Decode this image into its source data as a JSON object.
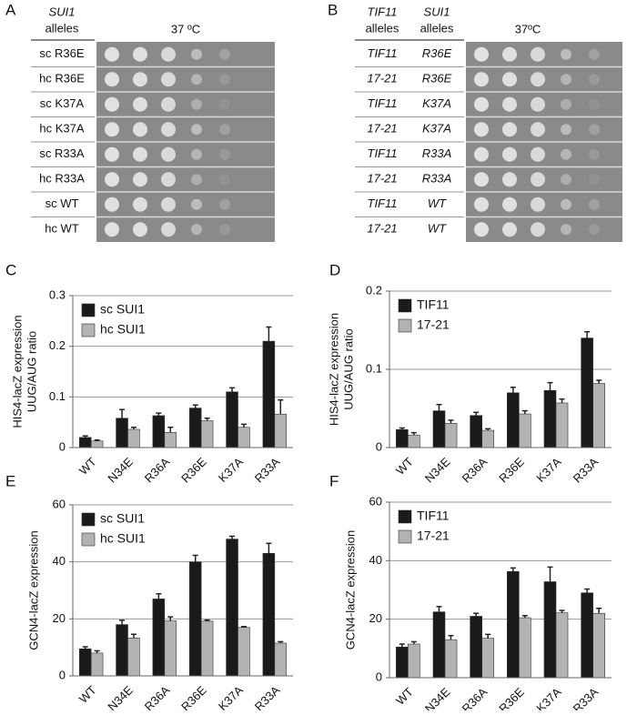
{
  "panel_a": {
    "label": "A",
    "header": [
      "SUI1",
      "alleles"
    ],
    "temperature": "37 ºC",
    "rows": [
      "sc R36E",
      "hc R36E",
      "sc K37A",
      "hc K37A",
      "sc R33A",
      "hc R33A",
      "sc WT",
      "hc WT"
    ]
  },
  "panel_b": {
    "label": "B",
    "header_1": [
      "TIF11",
      "alleles"
    ],
    "header_2": [
      "SUI1",
      "alleles"
    ],
    "temperature": "37ºC",
    "rows": [
      [
        "TIF11",
        "R36E"
      ],
      [
        "17-21",
        "R36E"
      ],
      [
        "TIF11",
        "K37A"
      ],
      [
        "17-21",
        "K37A"
      ],
      [
        "TIF11",
        "R33A"
      ],
      [
        "17-21",
        "R33A"
      ],
      [
        "TIF11",
        "WT"
      ],
      [
        "17-21",
        "WT"
      ]
    ]
  },
  "chart_data": [
    {
      "type": "bar",
      "panel": "C",
      "ylabel": [
        "HIS4-lacZ expression",
        "UUG/AUG ratio"
      ],
      "categories": [
        "WT",
        "N34E",
        "R36A",
        "R36E",
        "K37A",
        "R33A"
      ],
      "series": [
        {
          "name": "sc SUI1",
          "color": "#1a1a1a",
          "values": [
            0.02,
            0.058,
            0.063,
            0.078,
            0.11,
            0.21
          ],
          "errors": [
            0.003,
            0.017,
            0.005,
            0.006,
            0.008,
            0.028
          ]
        },
        {
          "name": "hc SUI1",
          "color": "#b3b3b3",
          "values": [
            0.013,
            0.036,
            0.03,
            0.053,
            0.04,
            0.066
          ],
          "errors": [
            0.002,
            0.004,
            0.01,
            0.005,
            0.006,
            0.028
          ]
        }
      ],
      "ylim": [
        0,
        0.3
      ],
      "yticks": [
        0,
        0.1,
        0.2,
        0.3
      ],
      "grid": true
    },
    {
      "type": "bar",
      "panel": "D",
      "ylabel": [
        "HIS4-lacZ expression",
        "UUG/AUG ratio"
      ],
      "categories": [
        "WT",
        "N34E",
        "R36A",
        "R36E",
        "K37A",
        "R33A"
      ],
      "series": [
        {
          "name": "TIF11",
          "color": "#1a1a1a",
          "values": [
            0.023,
            0.047,
            0.041,
            0.07,
            0.073,
            0.14
          ],
          "errors": [
            0.002,
            0.008,
            0.004,
            0.007,
            0.01,
            0.008
          ]
        },
        {
          "name": "17-21",
          "color": "#b3b3b3",
          "values": [
            0.016,
            0.031,
            0.022,
            0.043,
            0.057,
            0.082
          ],
          "errors": [
            0.003,
            0.004,
            0.002,
            0.004,
            0.005,
            0.004
          ]
        }
      ],
      "ylim": [
        0,
        0.2
      ],
      "yticks": [
        0,
        0.1,
        0.2
      ],
      "grid": true
    },
    {
      "type": "bar",
      "panel": "E",
      "ylabel": [
        "GCN4-lacZ expression"
      ],
      "categories": [
        "WT",
        "N34E",
        "R36A",
        "R36E",
        "K37A",
        "R33A"
      ],
      "series": [
        {
          "name": "sc SUI1",
          "color": "#1a1a1a",
          "values": [
            9.5,
            18,
            27,
            40,
            48,
            43
          ],
          "errors": [
            0.7,
            1.5,
            1.8,
            2.3,
            1,
            3.5
          ]
        },
        {
          "name": "hc SUI1",
          "color": "#b3b3b3",
          "values": [
            8,
            13.3,
            19.3,
            19.2,
            17,
            11.5
          ],
          "errors": [
            0.8,
            1.3,
            1.4,
            0.4,
            0.3,
            0.5
          ]
        }
      ],
      "ylim": [
        0,
        60
      ],
      "yticks": [
        0,
        20,
        40,
        60
      ],
      "grid": true
    },
    {
      "type": "bar",
      "panel": "F",
      "ylabel": [
        "GCN4-lacZ expression"
      ],
      "categories": [
        "WT",
        "N34E",
        "R36A",
        "R36E",
        "K37A",
        "R33A"
      ],
      "series": [
        {
          "name": "TIF11",
          "color": "#1a1a1a",
          "values": [
            10.5,
            22.5,
            21,
            36.3,
            32.8,
            29
          ],
          "errors": [
            1,
            1.8,
            1,
            1.2,
            5,
            1.3
          ]
        },
        {
          "name": "17-21",
          "color": "#b3b3b3",
          "values": [
            11.5,
            13,
            13.5,
            20.5,
            22.2,
            22
          ],
          "errors": [
            0.8,
            1.4,
            1.3,
            0.7,
            0.8,
            1.7
          ]
        }
      ],
      "ylim": [
        0,
        60
      ],
      "yticks": [
        0,
        20,
        40,
        60
      ],
      "grid": true
    }
  ]
}
